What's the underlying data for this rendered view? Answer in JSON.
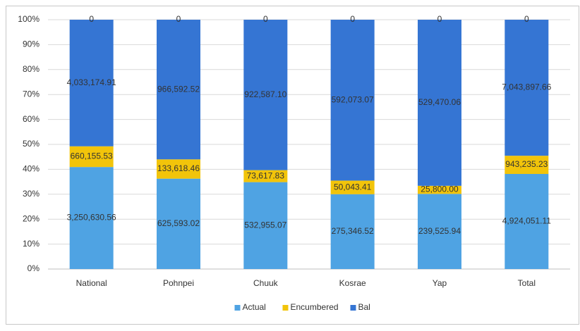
{
  "chart_data": {
    "type": "bar",
    "stacking": "percent",
    "categories": [
      "National",
      "Pohnpei",
      "Chuuk",
      "Kosrae",
      "Yap",
      "Total"
    ],
    "series": [
      {
        "name": "Actual",
        "color": "#4fa3e3",
        "values": [
          3250630.56,
          625593.02,
          532955.07,
          275346.52,
          239525.94,
          4924051.11
        ],
        "value_labels": [
          "3,250,630.56",
          "625,593.02",
          "532,955.07",
          "275,346.52",
          "239,525.94",
          "4,924,051.11"
        ]
      },
      {
        "name": "Encumbered",
        "color": "#f2c40a",
        "values": [
          660155.53,
          133618.46,
          73617.83,
          50043.41,
          25800.0,
          943235.23
        ],
        "value_labels": [
          "660,155.53",
          "133,618.46",
          "73,617.83",
          "50,043.41",
          "25,800.00",
          "943,235.23"
        ]
      },
      {
        "name": "Bal",
        "color": "#3575d3",
        "values": [
          4033174.91,
          966592.52,
          922587.1,
          592073.07,
          529470.06,
          7043897.66
        ],
        "value_labels": [
          "4,033,174.91",
          "966,592.52",
          "922,587.10",
          "592,073.07",
          "529,470.06",
          "7,043,897.66"
        ]
      },
      {
        "values": [
          0,
          0,
          0,
          0,
          0,
          0
        ]
      }
    ],
    "ylim": [
      0,
      100
    ],
    "yticks": [
      {
        "value": 0,
        "label": "0%"
      },
      {
        "value": 10,
        "label": "10%"
      },
      {
        "value": 20,
        "label": "20%"
      },
      {
        "value": 30,
        "label": "30%"
      },
      {
        "value": 40,
        "label": "40%"
      },
      {
        "value": 50,
        "label": "50%"
      },
      {
        "value": 60,
        "label": "60%"
      },
      {
        "value": 70,
        "label": "70%"
      },
      {
        "value": 80,
        "label": "80%"
      },
      {
        "value": 90,
        "label": "90%"
      },
      {
        "value": 100,
        "label": "100%"
      }
    ],
    "grid": true,
    "legend": "bottom"
  }
}
